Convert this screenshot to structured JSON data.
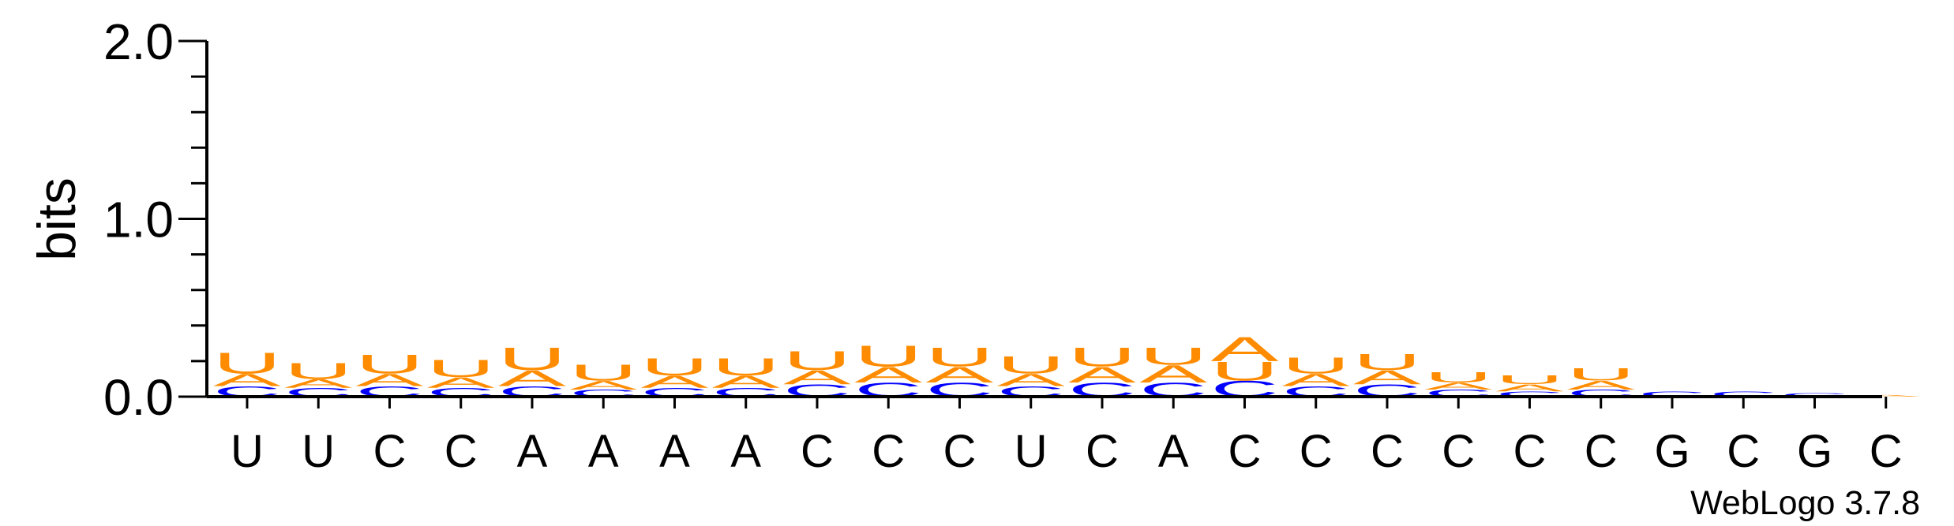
{
  "chart_data": {
    "type": "sequence-logo",
    "ylabel": "bits",
    "ylim": [
      0,
      2.0
    ],
    "yticks": [
      "0.0",
      "1.0",
      "2.0"
    ],
    "ytick_values": [
      0,
      1,
      2
    ],
    "credit": "WebLogo 3.7.8",
    "colors": {
      "A": "#ff8c00",
      "U": "#ff8c00",
      "C": "#0000ff",
      "G": "#0000ff"
    },
    "positions": [
      {
        "label": "U",
        "stack": [
          {
            "letter": "C",
            "bits": 0.06
          },
          {
            "letter": "A",
            "bits": 0.07
          },
          {
            "letter": "U",
            "bits": 0.12
          }
        ]
      },
      {
        "label": "U",
        "stack": [
          {
            "letter": "C",
            "bits": 0.05
          },
          {
            "letter": "A",
            "bits": 0.05
          },
          {
            "letter": "U",
            "bits": 0.09
          }
        ]
      },
      {
        "label": "C",
        "stack": [
          {
            "letter": "C",
            "bits": 0.06
          },
          {
            "letter": "A",
            "bits": 0.07
          },
          {
            "letter": "U",
            "bits": 0.11
          }
        ]
      },
      {
        "label": "C",
        "stack": [
          {
            "letter": "C",
            "bits": 0.05
          },
          {
            "letter": "A",
            "bits": 0.06
          },
          {
            "letter": "U",
            "bits": 0.1
          }
        ]
      },
      {
        "label": "A",
        "stack": [
          {
            "letter": "C",
            "bits": 0.06
          },
          {
            "letter": "A",
            "bits": 0.09
          },
          {
            "letter": "U",
            "bits": 0.13
          }
        ]
      },
      {
        "label": "A",
        "stack": [
          {
            "letter": "C",
            "bits": 0.04
          },
          {
            "letter": "A",
            "bits": 0.05
          },
          {
            "letter": "U",
            "bits": 0.09
          }
        ]
      },
      {
        "label": "A",
        "stack": [
          {
            "letter": "C",
            "bits": 0.05
          },
          {
            "letter": "A",
            "bits": 0.07
          },
          {
            "letter": "U",
            "bits": 0.1
          }
        ]
      },
      {
        "label": "A",
        "stack": [
          {
            "letter": "C",
            "bits": 0.05
          },
          {
            "letter": "A",
            "bits": 0.07
          },
          {
            "letter": "U",
            "bits": 0.1
          }
        ]
      },
      {
        "label": "C",
        "stack": [
          {
            "letter": "C",
            "bits": 0.07
          },
          {
            "letter": "A",
            "bits": 0.08
          },
          {
            "letter": "U",
            "bits": 0.11
          }
        ]
      },
      {
        "label": "C",
        "stack": [
          {
            "letter": "C",
            "bits": 0.08
          },
          {
            "letter": "A",
            "bits": 0.09
          },
          {
            "letter": "U",
            "bits": 0.12
          }
        ]
      },
      {
        "label": "C",
        "stack": [
          {
            "letter": "C",
            "bits": 0.08
          },
          {
            "letter": "A",
            "bits": 0.09
          },
          {
            "letter": "U",
            "bits": 0.11
          }
        ]
      },
      {
        "label": "U",
        "stack": [
          {
            "letter": "C",
            "bits": 0.06
          },
          {
            "letter": "A",
            "bits": 0.07
          },
          {
            "letter": "U",
            "bits": 0.1
          }
        ]
      },
      {
        "label": "C",
        "stack": [
          {
            "letter": "C",
            "bits": 0.08
          },
          {
            "letter": "A",
            "bits": 0.09
          },
          {
            "letter": "U",
            "bits": 0.11
          }
        ]
      },
      {
        "label": "A",
        "stack": [
          {
            "letter": "C",
            "bits": 0.08
          },
          {
            "letter": "A",
            "bits": 0.1
          },
          {
            "letter": "U",
            "bits": 0.1
          }
        ]
      },
      {
        "label": "C",
        "stack": [
          {
            "letter": "C",
            "bits": 0.09
          },
          {
            "letter": "U",
            "bits": 0.11
          },
          {
            "letter": "A",
            "bits": 0.14
          }
        ]
      },
      {
        "label": "C",
        "stack": [
          {
            "letter": "C",
            "bits": 0.06
          },
          {
            "letter": "A",
            "bits": 0.07
          },
          {
            "letter": "U",
            "bits": 0.09
          }
        ]
      },
      {
        "label": "C",
        "stack": [
          {
            "letter": "C",
            "bits": 0.07
          },
          {
            "letter": "A",
            "bits": 0.08
          },
          {
            "letter": "U",
            "bits": 0.09
          }
        ]
      },
      {
        "label": "C",
        "stack": [
          {
            "letter": "C",
            "bits": 0.04
          },
          {
            "letter": "A",
            "bits": 0.04
          },
          {
            "letter": "U",
            "bits": 0.06
          }
        ]
      },
      {
        "label": "C",
        "stack": [
          {
            "letter": "C",
            "bits": 0.03
          },
          {
            "letter": "A",
            "bits": 0.04
          },
          {
            "letter": "U",
            "bits": 0.05
          }
        ]
      },
      {
        "label": "C",
        "stack": [
          {
            "letter": "C",
            "bits": 0.04
          },
          {
            "letter": "A",
            "bits": 0.05
          },
          {
            "letter": "U",
            "bits": 0.07
          }
        ]
      },
      {
        "label": "G",
        "stack": [
          {
            "letter": "C",
            "bits": 0.03
          }
        ]
      },
      {
        "label": "C",
        "stack": [
          {
            "letter": "C",
            "bits": 0.03
          }
        ]
      },
      {
        "label": "G",
        "stack": [
          {
            "letter": "C",
            "bits": 0.02
          }
        ]
      },
      {
        "label": "C",
        "stack": [
          {
            "letter": "A",
            "bits": 0.01
          }
        ]
      }
    ]
  }
}
